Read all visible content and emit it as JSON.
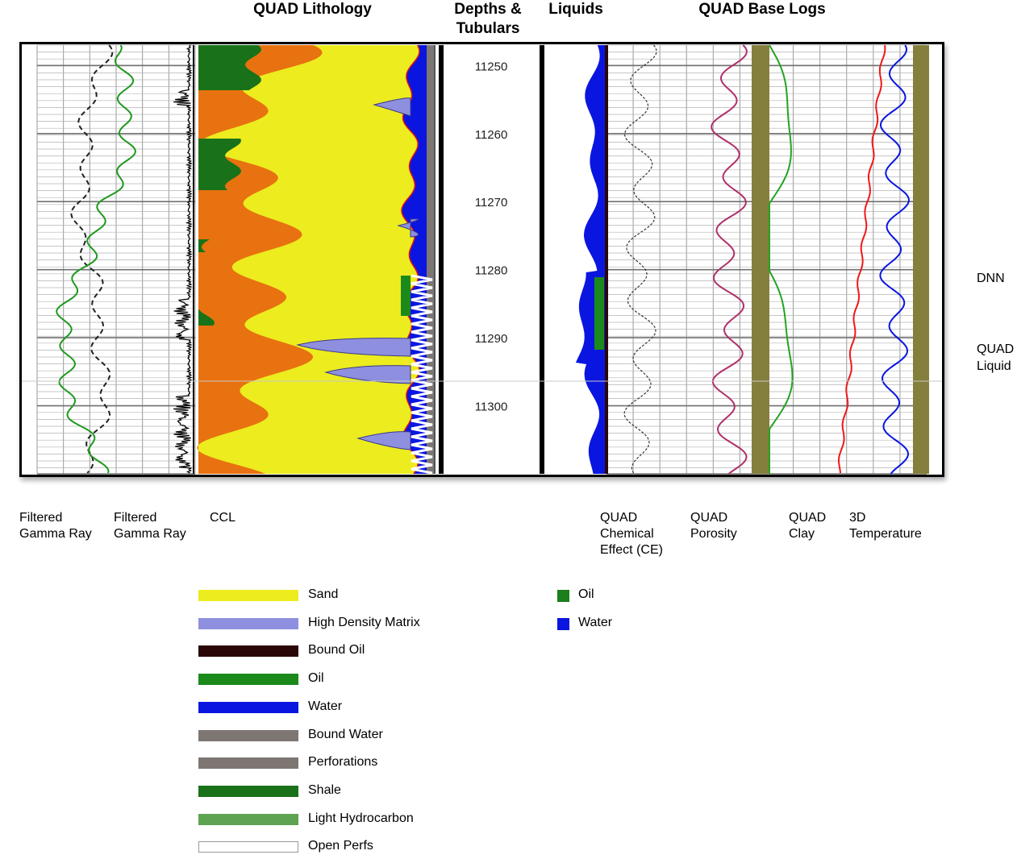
{
  "headers": {
    "lithology": "QUAD Lithology",
    "depths": "Depths &\nTubulars",
    "liquids": "Liquids",
    "base_logs": "QUAD Base Logs"
  },
  "track_labels": {
    "gamma1": "Filtered\nGamma Ray",
    "gamma2": "Filtered\nGamma Ray",
    "ccl": "CCL",
    "ce": "QUAD\nChemical\nEffect (CE)",
    "porosity": "QUAD\nPorosity",
    "clay": "QUAD\nClay",
    "temperature": "3D\nTemperature"
  },
  "side_labels": {
    "dnn": "DNN",
    "quad_liquid": "QUAD\nLiquid"
  },
  "chart_data": {
    "type": "area",
    "depth_unit": "",
    "depth_ticks": [
      11250,
      11260,
      11270,
      11280,
      11290,
      11300
    ],
    "depth_range": [
      11247,
      11310
    ],
    "lithology_series": [
      "Sand",
      "High Density Matrix",
      "Bound Oil",
      "Oil",
      "Water",
      "Bound Water",
      "Perforations",
      "Shale",
      "Light Hydrocarbon",
      "Open Perfs"
    ],
    "liquid_series": [
      "Oil",
      "Water"
    ],
    "log_curves": [
      "Filtered Gamma Ray",
      "Filtered Gamma Ray",
      "CCL",
      "QUAD Chemical Effect (CE)",
      "QUAD Porosity",
      "QUAD Clay",
      "3D Temperature"
    ]
  },
  "legend": [
    {
      "label": "Sand",
      "color": "#ecec1f"
    },
    {
      "label": "High Density Matrix",
      "color": "#8f8fdf"
    },
    {
      "label": "Bound Oil",
      "color": "#2a0606"
    },
    {
      "label": "Oil",
      "color": "#1b8a1b"
    },
    {
      "label": "Water",
      "color": "#0a16e0"
    },
    {
      "label": "Bound Water",
      "color": "#7d7673"
    },
    {
      "label": "Perforations",
      "color": "#7d7673"
    },
    {
      "label": "Shale",
      "color": "#197219"
    },
    {
      "label": "Light Hydrocarbon",
      "color": "#5ea352"
    },
    {
      "label": "Open Perfs",
      "color": "#ffffff"
    }
  ],
  "liquid_legend": [
    {
      "label": "Oil",
      "color": "#1b7f1b"
    },
    {
      "label": "Water",
      "color": "#0a16e0"
    }
  ],
  "colors": {
    "sand": "#ecec1f",
    "shale_orange": "#e8720f",
    "shale_green": "#197219",
    "hdm": "#8f8fdf",
    "water": "#0a16e0",
    "oil": "#1b8a1b",
    "bound_oil": "#2a0606",
    "bound_water": "#7d7673",
    "gamma_green": "#1e9a1e",
    "porosity_pink": "#b0306a",
    "clay_green": "#22a422",
    "temp_red": "#f01818",
    "olive": "#857f3d"
  }
}
